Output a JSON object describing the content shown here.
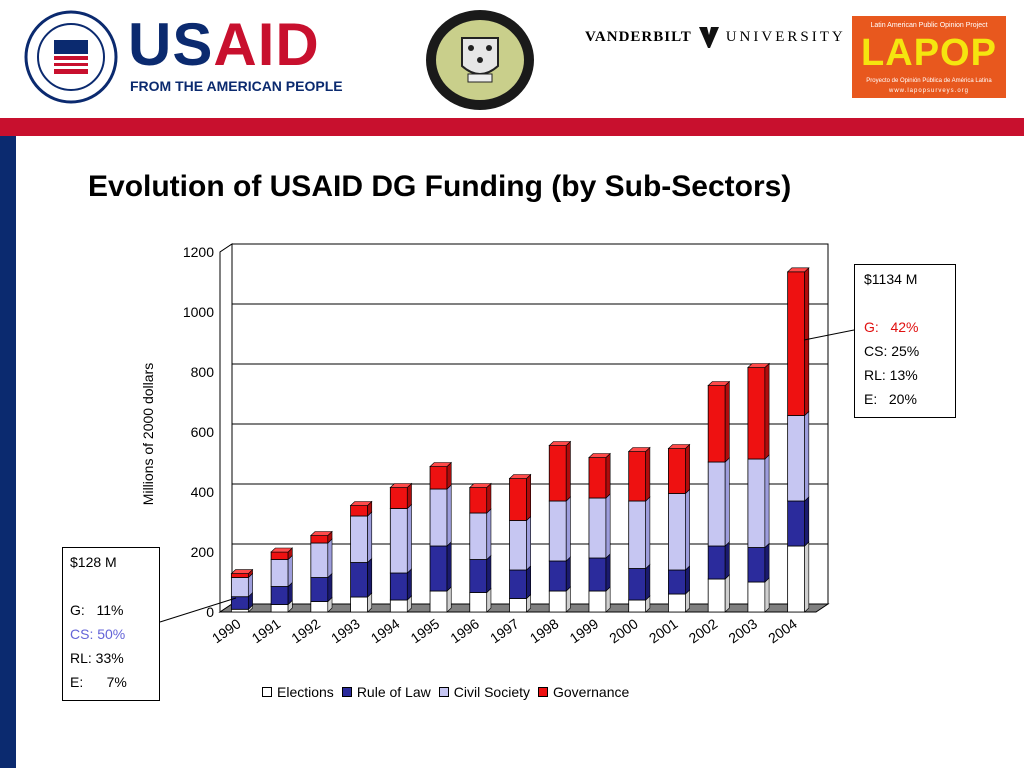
{
  "header": {
    "usaid_word_us": "US",
    "usaid_word_aid": "AID",
    "usaid_tagline": "FROM THE AMERICAN PEOPLE",
    "vanderbilt_left": "VANDERBILT",
    "vanderbilt_right": "UNIVERSITY",
    "lapop_word": "LAPOP",
    "lapop_top": "Latin American Public Opinion Project",
    "lapop_sub": "Proyecto de Opinión Pública de América Latina",
    "lapop_url": "www.lapopsurveys.org"
  },
  "colors": {
    "red_bar": "#c8102e",
    "navy": "#0b2a6f",
    "elections": "#ffffff",
    "rule_of_law": "#2b2b9c",
    "civil_society": "#c6c6f2",
    "governance": "#ee1111"
  },
  "title": "Evolution of USAID DG Funding (by Sub-Sectors)",
  "chart_data": {
    "type": "bar",
    "stacked": true,
    "categories": [
      "1990",
      "1991",
      "1992",
      "1993",
      "1994",
      "1995",
      "1996",
      "1997",
      "1998",
      "1999",
      "2000",
      "2001",
      "2002",
      "2003",
      "2004"
    ],
    "series": [
      {
        "name": "Elections",
        "values": [
          9,
          25,
          35,
          50,
          40,
          70,
          65,
          45,
          70,
          70,
          40,
          60,
          110,
          100,
          220
        ]
      },
      {
        "name": "Rule of Law",
        "values": [
          42,
          60,
          80,
          115,
          90,
          150,
          110,
          95,
          100,
          110,
          105,
          80,
          110,
          115,
          150
        ]
      },
      {
        "name": "Civil Society",
        "values": [
          64,
          90,
          115,
          155,
          215,
          190,
          155,
          165,
          200,
          200,
          225,
          255,
          280,
          295,
          285
        ]
      },
      {
        "name": "Governance",
        "values": [
          13,
          25,
          25,
          35,
          70,
          75,
          85,
          140,
          185,
          135,
          165,
          150,
          255,
          305,
          479
        ]
      }
    ],
    "ylabel": "Millions of 2000 dollars",
    "xlabel": "",
    "ylim": [
      0,
      1200
    ],
    "yticks": [
      0,
      200,
      400,
      600,
      800,
      1000,
      1200
    ],
    "grid": true,
    "legend_position": "bottom"
  },
  "callout_left": {
    "total": "$128 M",
    "g": "G:   11%",
    "cs": "CS: 50%",
    "rl": "RL: 33%",
    "e": "E:      7%"
  },
  "callout_right": {
    "total": "$1134 M",
    "g": "G:   42%",
    "cs": "CS: 25%",
    "rl": "RL: 13%",
    "e": "E:   20%"
  }
}
